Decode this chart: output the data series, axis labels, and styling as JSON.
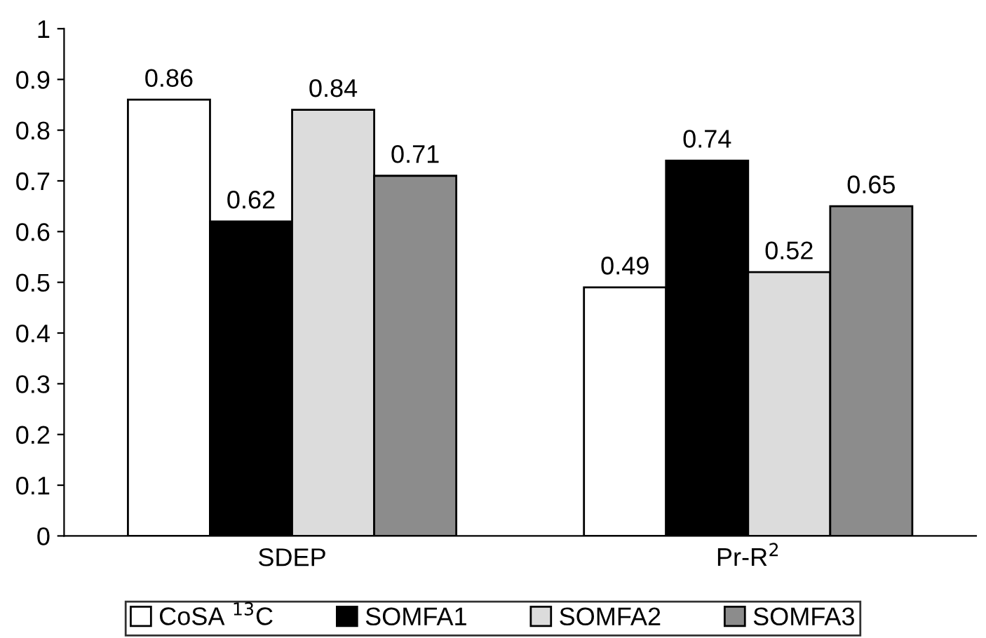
{
  "chart_data": {
    "type": "bar",
    "categories": [
      "SDEP",
      "Pr-R$^{2}$"
    ],
    "series": [
      {
        "name": "CoSA $^{13}$C",
        "color": "#ffffff",
        "values": [
          0.86,
          0.49
        ]
      },
      {
        "name": "SOMFA1",
        "color": "#000000",
        "values": [
          0.62,
          0.74
        ]
      },
      {
        "name": "SOMFA2",
        "color": "#dcdcdc",
        "values": [
          0.84,
          0.52
        ]
      },
      {
        "name": "SOMFA3",
        "color": "#8c8c8c",
        "values": [
          0.71,
          0.65
        ]
      }
    ],
    "ylim": [
      0,
      1
    ],
    "yticks": [
      0,
      0.1,
      0.2,
      0.3,
      0.4,
      0.5,
      0.6,
      0.7,
      0.8,
      0.9,
      1
    ],
    "data_labels": true,
    "grid": false,
    "legend": "bottom"
  }
}
